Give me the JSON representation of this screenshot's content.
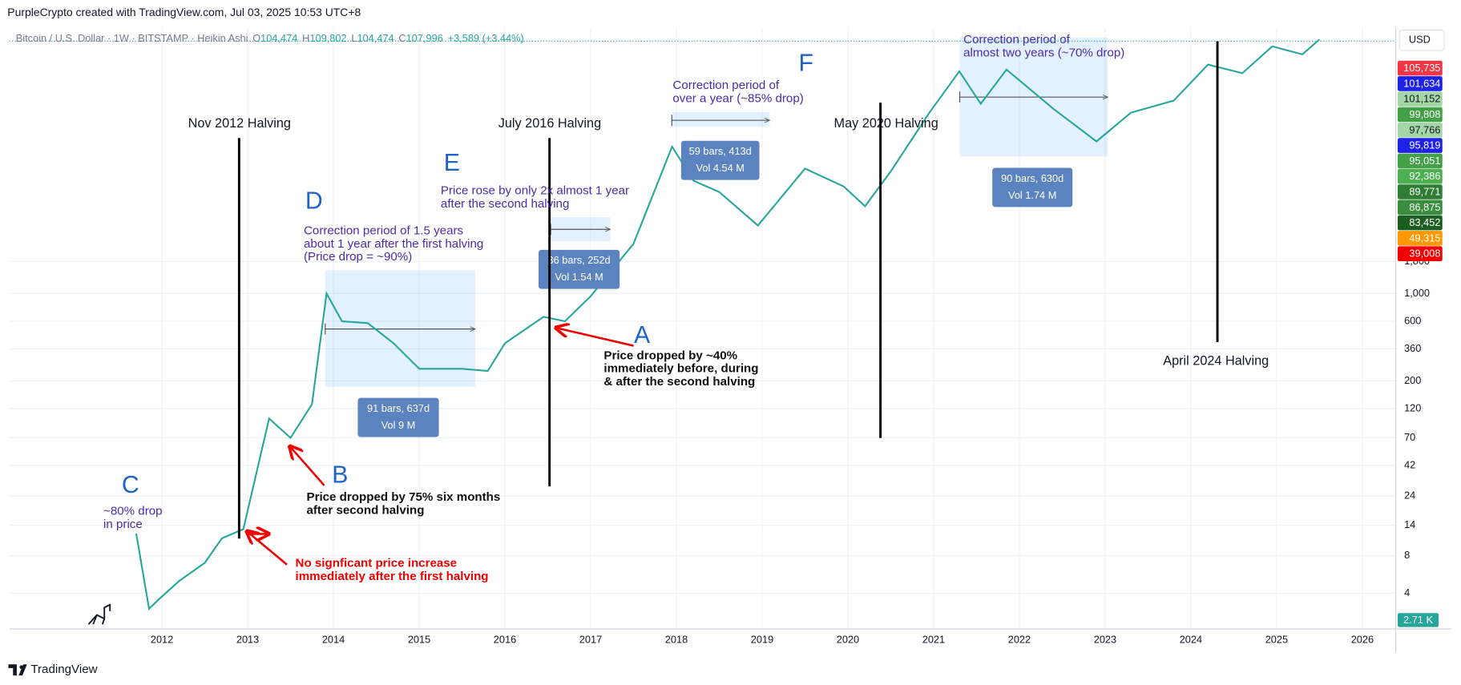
{
  "header": {
    "attribution": "PurpleCrypto created with TradingView.com, Jul 03, 2025 10:53 UTC+8",
    "symbol": "Bitcoin / U.S. Dollar · 1W · BITSTAMP · Heikin Ashi",
    "ohlc": [
      {
        "key": "O",
        "value": "104,474"
      },
      {
        "key": "H",
        "value": "109,802"
      },
      {
        "key": "L",
        "value": "104,474"
      },
      {
        "key": "C",
        "value": "107,996"
      }
    ],
    "change": "+3,589 (+3.44%)"
  },
  "currency": "USD",
  "footer": {
    "brand": "TradingView"
  },
  "chart_data": {
    "type": "line",
    "log_y": true,
    "grid": true,
    "color": "#26a69a",
    "x": [
      2011.7,
      2011.85,
      2011.95,
      2012.2,
      2012.5,
      2012.7,
      2012.95,
      2013.25,
      2013.5,
      2013.75,
      2013.92,
      2014.1,
      2014.4,
      2014.7,
      2015.0,
      2015.5,
      2015.8,
      2016.0,
      2016.45,
      2016.7,
      2017.0,
      2017.5,
      2017.95,
      2018.2,
      2018.5,
      2018.95,
      2019.5,
      2019.95,
      2020.2,
      2020.5,
      2020.95,
      2021.3,
      2021.55,
      2021.85,
      2022.4,
      2022.9,
      2023.3,
      2023.8,
      2024.2,
      2024.6,
      2024.95,
      2025.3,
      2025.5
    ],
    "values": [
      12,
      3,
      3.5,
      5,
      7,
      11,
      13,
      100,
      70,
      130,
      1000,
      600,
      580,
      400,
      250,
      250,
      240,
      400,
      650,
      600,
      950,
      2500,
      15000,
      8000,
      6500,
      3500,
      10000,
      7200,
      5000,
      9500,
      28000,
      60000,
      33000,
      62000,
      30000,
      16500,
      28000,
      35000,
      68000,
      58000,
      95000,
      82000,
      107996
    ],
    "xlim": [
      2010.22,
      2026.39
    ],
    "xticks": [
      2012,
      2013,
      2014,
      2015,
      2016,
      2017,
      2018,
      2019,
      2020,
      2021,
      2022,
      2023,
      2024,
      2025,
      2026
    ],
    "ylim": [
      2,
      120000
    ],
    "yticks": [
      4,
      8,
      14,
      24,
      42,
      70,
      120,
      200,
      360,
      600,
      {
        "value": 1000,
        "label": "1,000"
      },
      {
        "value": 1800,
        "label": "1,800"
      }
    ],
    "price_labels": [
      {
        "label": "105,735",
        "color": "#f23645"
      },
      {
        "label": "101,634",
        "color": "#1e22e6"
      },
      {
        "label": "101,152",
        "color": "#a5d6a7"
      },
      {
        "label": "99,808",
        "color": "#43a047"
      },
      {
        "label": "97,766",
        "color": "#a5d6a7"
      },
      {
        "label": "95,819",
        "color": "#1e22e6"
      },
      {
        "label": "95,051",
        "color": "#43a047"
      },
      {
        "label": "92,386",
        "color": "#4caf50"
      },
      {
        "label": "89,771",
        "color": "#2e7d32"
      },
      {
        "label": "86,875",
        "color": "#388e3c"
      },
      {
        "label": "83,452",
        "color": "#1b5e20"
      },
      {
        "label": "49,315",
        "color": "#ff9800"
      },
      {
        "label": "39,008",
        "color": "#f00000"
      }
    ],
    "volume_label": "2.71 K",
    "halvings": [
      {
        "x": 2012.9,
        "label": "Nov 2012 Halving"
      },
      {
        "x": 2016.52,
        "label": "July 2016 Halving"
      },
      {
        "x": 2020.38,
        "label": "May 2020 Halving"
      },
      {
        "x": 2024.31,
        "label": "April 2024 Halving"
      }
    ],
    "letter_color": "#1e64c8",
    "letters": [
      "A",
      "B",
      "C",
      "D",
      "E",
      "F"
    ],
    "notes": [
      {
        "lines": [
          "~80% drop",
          "in price"
        ],
        "color": "#4b2aad",
        "weight": "normal"
      },
      {
        "lines": [
          "Price dropped by 75% six months",
          "after second halving"
        ],
        "color": "#111111",
        "weight": "bold"
      },
      {
        "lines": [
          "No signficant price increase",
          "immediately after the first halving"
        ],
        "color": "#f00000",
        "weight": "bold"
      },
      {
        "lines": [
          "Correction period of 1.5 years",
          "about 1 year after the first halving",
          "(Price drop = ~90%)"
        ],
        "color": "#4b2aad",
        "weight": "normal"
      },
      {
        "lines": [
          "Price rose by only 2x almost 1 year",
          "after the second halving"
        ],
        "color": "#4b2aad",
        "weight": "normal"
      },
      {
        "lines": [
          "Price dropped by ~40%",
          "immediately before, during",
          "& after the second halving"
        ],
        "color": "#111111",
        "weight": "bold"
      },
      {
        "lines": [
          "Correction period of",
          "over a year (~85% drop)"
        ],
        "color": "#4b2aad",
        "weight": "normal"
      },
      {
        "lines": [
          "Correction period of",
          "almost two years (~70% drop)"
        ],
        "color": "#4b2aad",
        "weight": "normal"
      }
    ],
    "measurements": [
      {
        "bars": "91 bars, 637d",
        "volume": "Vol 9 M"
      },
      {
        "bars": "36 bars, 252d",
        "volume": "Vol 1.54 M"
      },
      {
        "bars": "59 bars, 413d",
        "volume": "Vol 4.54 M"
      },
      {
        "bars": "90 bars, 630d",
        "volume": "Vol 1.74 M"
      }
    ]
  }
}
